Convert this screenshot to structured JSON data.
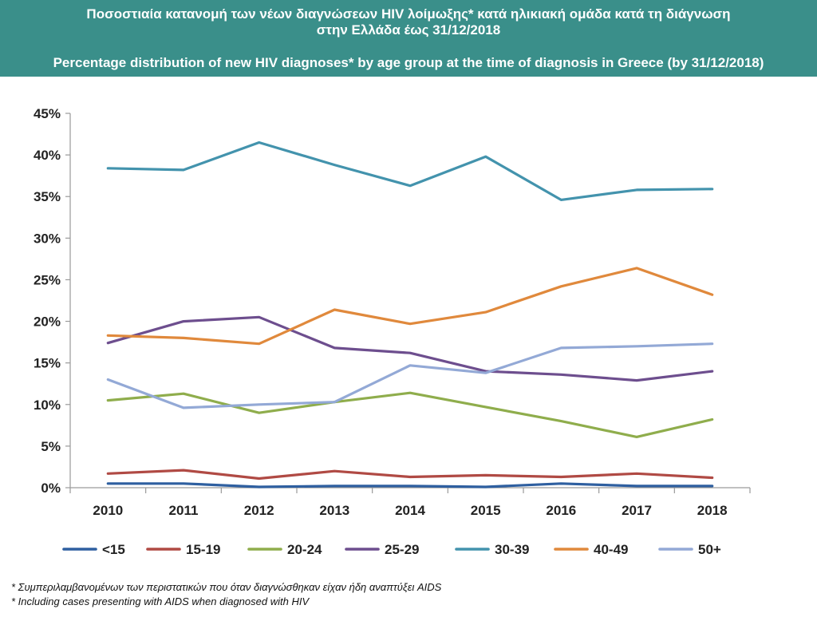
{
  "header": {
    "title_gr_line1": "Ποσοστιαία κατανομή των νέων διαγνώσεων HIV λοίμωξης* κατά ηλικιακή ομάδα κατά τη διάγνωση",
    "title_gr_line2": "στην Ελλάδα έως 31/12/2018",
    "title_en": "Percentage distribution of new HIV diagnoses* by age group at the time of diagnosis in Greece (by 31/12/2018)"
  },
  "footnotes": {
    "gr": "* Συμπεριλαμβανομένων των περιστατικών που όταν διαγνώσθηκαν είχαν ήδη αναπτύξει AIDS",
    "en": "* Including cases presenting with AIDS when diagnosed with HIV"
  },
  "colors": {
    "header_bg": "#3a8f8a",
    "<15": "#2e5fa0",
    "15-19": "#b04a44",
    "20-24": "#8fad4c",
    "25-29": "#6d4e8e",
    "30-39": "#4393ad",
    "40-49": "#e0893c",
    "50+": "#93a9d6"
  },
  "chart_data": {
    "type": "line",
    "x": [
      "2010",
      "2011",
      "2012",
      "2013",
      "2014",
      "2015",
      "2016",
      "2017",
      "2018"
    ],
    "ylim": [
      0,
      45
    ],
    "yticks": [
      "0%",
      "5%",
      "10%",
      "15%",
      "20%",
      "25%",
      "30%",
      "35%",
      "40%",
      "45%"
    ],
    "grid": false,
    "legend_position": "bottom",
    "series": [
      {
        "name": "<15",
        "values": [
          0.5,
          0.5,
          0.1,
          0.2,
          0.2,
          0.1,
          0.5,
          0.2,
          0.2
        ]
      },
      {
        "name": "15-19",
        "values": [
          1.7,
          2.1,
          1.1,
          2.0,
          1.3,
          1.5,
          1.3,
          1.7,
          1.2
        ]
      },
      {
        "name": "20-24",
        "values": [
          10.5,
          11.3,
          9.0,
          10.3,
          11.4,
          9.7,
          8.0,
          6.1,
          8.2
        ]
      },
      {
        "name": "25-29",
        "values": [
          17.4,
          20.0,
          20.5,
          16.8,
          16.2,
          14.0,
          13.6,
          12.9,
          14.0
        ]
      },
      {
        "name": "30-39",
        "values": [
          38.4,
          38.2,
          41.5,
          38.8,
          36.3,
          39.8,
          34.6,
          35.8,
          35.9
        ]
      },
      {
        "name": "40-49",
        "values": [
          18.3,
          18.0,
          17.3,
          21.4,
          19.7,
          21.1,
          24.2,
          26.4,
          23.2
        ]
      },
      {
        "name": "50+",
        "values": [
          13.0,
          9.6,
          10.0,
          10.3,
          14.7,
          13.8,
          16.8,
          17.0,
          17.3
        ]
      }
    ]
  }
}
